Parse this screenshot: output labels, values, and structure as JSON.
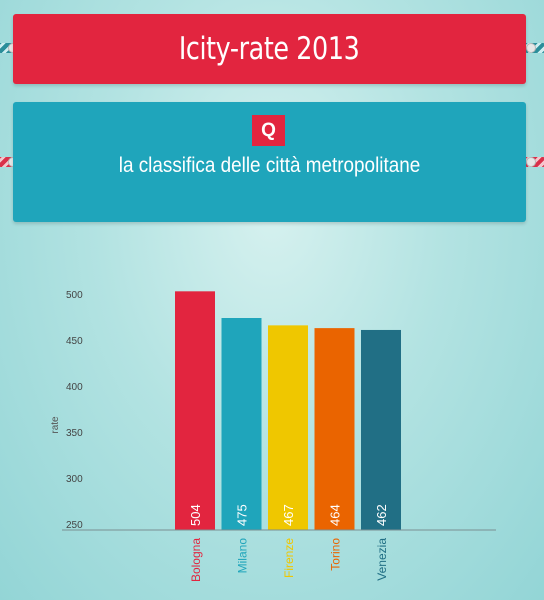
{
  "header": {
    "title": "Icity-rate 2013",
    "badge": "Q",
    "subtitle": "la classifica delle città metropolitane"
  },
  "colors": {
    "red": "#e2253f",
    "teal": "#1fa5bb",
    "yellow": "#efc700",
    "orange": "#ea6400",
    "dark_teal": "#216f85"
  },
  "chart_data": {
    "type": "bar",
    "categories": [
      "Bologna",
      "Milano",
      "Firenze",
      "Torino",
      "Venezia"
    ],
    "values": [
      504,
      475,
      467,
      464,
      462
    ],
    "bar_colors": [
      "#e2253f",
      "#1fa5bb",
      "#efc700",
      "#ea6400",
      "#216f85"
    ],
    "ylabel": "rate",
    "ylim": [
      250,
      500
    ],
    "yticks": [
      250,
      300,
      350,
      400,
      450,
      500
    ],
    "value_labels": true,
    "grid": false
  }
}
